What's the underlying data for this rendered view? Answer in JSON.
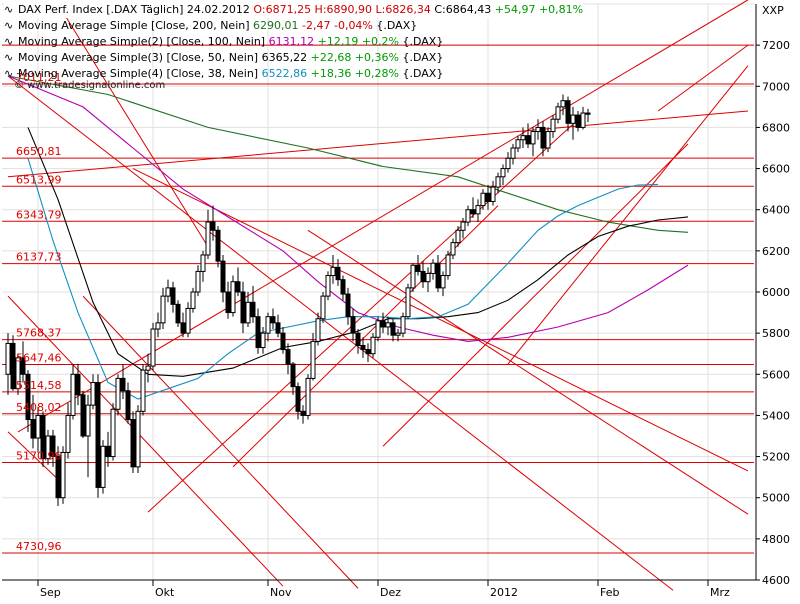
{
  "legend": {
    "main": {
      "label": "DAX Perf. Index [.DAX Täglich] 24.02.2012",
      "ohlc": "O:6871,25 H:6890,90 L:6826,34",
      "close": "C:6864,43",
      "change": "+54,97 +0,81%"
    },
    "ma": [
      {
        "label": "Moving Average Simple [Close, 200, Nein]",
        "value": "6290,01",
        "change": "-2,47 -0,04%",
        "tag": "{.DAX}",
        "color": "#207020"
      },
      {
        "label": "Moving Average Simple(2) [Close, 100, Nein]",
        "value": "6131,12",
        "change": "+12,19 +0,2%",
        "tag": "{.DAX}",
        "color": "#b000b0"
      },
      {
        "label": "Moving Average Simple(3) [Close, 50, Nein]",
        "value": "6365,22",
        "change": "+22,68 +0,36%",
        "tag": "{.DAX}",
        "color": "#000000"
      },
      {
        "label": "Moving Average Simple(4) [Close, 38, Nein]",
        "value": "6522,86",
        "change": "+18,36 +0,28%",
        "tag": "{.DAX}",
        "color": "#1090c0"
      }
    ]
  },
  "watermark": "© www.tradesignalonline.com",
  "symbol_label": "XXP",
  "colors": {
    "candle": "#000000",
    "level": "#dd0000",
    "trendline": "#dd0000",
    "grid": "#e0e0e0"
  },
  "chart_data": {
    "type": "candlestick",
    "x_axis": {
      "labels": [
        "Sep",
        "Okt",
        "Nov",
        "Dez",
        "2012",
        "Feb",
        "Mrz"
      ],
      "range": [
        "2011-08-29",
        "2012-03-12"
      ]
    },
    "y_axis": {
      "range": [
        4600,
        7400
      ],
      "ticks": [
        4600,
        4800,
        5000,
        5200,
        5400,
        5600,
        5800,
        6000,
        6200,
        6400,
        6600,
        6800,
        7000,
        7200,
        7400
      ]
    },
    "levels": [
      {
        "value": 7011.21,
        "label": "7011,21"
      },
      {
        "value": 6650.81,
        "label": "6650,81"
      },
      {
        "value": 6513.99,
        "label": "6513,99"
      },
      {
        "value": 6343.79,
        "label": "6343,79"
      },
      {
        "value": 6137.73,
        "label": "6137,73"
      },
      {
        "value": 5768.37,
        "label": "5768,37"
      },
      {
        "value": 5647.46,
        "label": "5647,46"
      },
      {
        "value": 5514.58,
        "label": "5514,58"
      },
      {
        "value": 5408.02,
        "label": "5408,02"
      },
      {
        "value": 5170.96,
        "label": "5170,96"
      },
      {
        "value": 4730.96,
        "label": "4730,96"
      },
      {
        "value": 7200
      }
    ],
    "trendlines": [
      {
        "from": [
          0,
          7050
        ],
        "to": [
          133,
          4550
        ]
      },
      {
        "from": [
          28,
          4930
        ],
        "to": [
          115,
          6860
        ]
      },
      {
        "from": [
          45,
          5150
        ],
        "to": [
          98,
          6420
        ]
      },
      {
        "from": [
          75,
          5250
        ],
        "to": [
          136,
          6720
        ]
      },
      {
        "from": [
          2,
          5320
        ],
        "to": [
          148,
          7420
        ]
      },
      {
        "from": [
          0,
          6560
        ],
        "to": [
          148,
          6880
        ]
      },
      {
        "from": [
          15,
          5980
        ],
        "to": [
          70,
          4560
        ]
      },
      {
        "from": [
          0,
          5980
        ],
        "to": [
          55,
          4570
        ]
      },
      {
        "from": [
          0,
          5320
        ],
        "to": [
          10,
          5090
        ]
      },
      {
        "from": [
          10,
          7400
        ],
        "to": [
          40,
          6220
        ]
      },
      {
        "from": [
          100,
          5650
        ],
        "to": [
          148,
          7100
        ]
      },
      {
        "from": [
          130,
          6880
        ],
        "to": [
          148,
          7200
        ]
      },
      {
        "from": [
          60,
          6300
        ],
        "to": [
          148,
          4920
        ]
      },
      {
        "from": [
          25,
          6600
        ],
        "to": [
          148,
          5130
        ]
      }
    ],
    "ma_series": [
      {
        "name": "MA200",
        "points": [
          [
            0,
            7050
          ],
          [
            20,
            6960
          ],
          [
            40,
            6800
          ],
          [
            60,
            6700
          ],
          [
            75,
            6610
          ],
          [
            90,
            6560
          ],
          [
            100,
            6480
          ],
          [
            110,
            6400
          ],
          [
            120,
            6340
          ],
          [
            130,
            6300
          ],
          [
            136,
            6290
          ]
        ]
      },
      {
        "name": "MA100",
        "points": [
          [
            0,
            7050
          ],
          [
            15,
            6900
          ],
          [
            25,
            6700
          ],
          [
            35,
            6500
          ],
          [
            45,
            6350
          ],
          [
            55,
            6200
          ],
          [
            62,
            6050
          ],
          [
            70,
            5900
          ],
          [
            78,
            5830
          ],
          [
            85,
            5790
          ],
          [
            92,
            5760
          ],
          [
            100,
            5780
          ],
          [
            110,
            5830
          ],
          [
            120,
            5900
          ],
          [
            128,
            6010
          ],
          [
            136,
            6131
          ]
        ]
      },
      {
        "name": "MA50",
        "points": [
          [
            4,
            6800
          ],
          [
            10,
            6450
          ],
          [
            17,
            5950
          ],
          [
            22,
            5700
          ],
          [
            28,
            5600
          ],
          [
            35,
            5590
          ],
          [
            45,
            5630
          ],
          [
            55,
            5730
          ],
          [
            62,
            5760
          ],
          [
            70,
            5810
          ],
          [
            76,
            5870
          ],
          [
            82,
            5870
          ],
          [
            88,
            5880
          ],
          [
            94,
            5900
          ],
          [
            100,
            5960
          ],
          [
            106,
            6060
          ],
          [
            112,
            6180
          ],
          [
            118,
            6270
          ],
          [
            124,
            6320
          ],
          [
            130,
            6350
          ],
          [
            136,
            6365
          ]
        ]
      },
      {
        "name": "MA38",
        "points": [
          [
            4,
            6650
          ],
          [
            9,
            6250
          ],
          [
            14,
            5900
          ],
          [
            20,
            5560
          ],
          [
            26,
            5480
          ],
          [
            32,
            5530
          ],
          [
            38,
            5580
          ],
          [
            44,
            5700
          ],
          [
            50,
            5800
          ],
          [
            56,
            5830
          ],
          [
            62,
            5860
          ],
          [
            68,
            5880
          ],
          [
            74,
            5880
          ],
          [
            80,
            5870
          ],
          [
            86,
            5880
          ],
          [
            92,
            5940
          ],
          [
            96,
            6040
          ],
          [
            100,
            6140
          ],
          [
            106,
            6300
          ],
          [
            110,
            6370
          ],
          [
            114,
            6420
          ],
          [
            118,
            6460
          ],
          [
            122,
            6500
          ],
          [
            126,
            6520
          ],
          [
            130,
            6523
          ]
        ]
      }
    ],
    "candles": [
      [
        5600,
        5800,
        5500,
        5750
      ],
      [
        5750,
        5790,
        5520,
        5530
      ],
      [
        5530,
        5700,
        5500,
        5680
      ],
      [
        5680,
        5760,
        5560,
        5600
      ],
      [
        5600,
        5620,
        5320,
        5380
      ],
      [
        5380,
        5500,
        5240,
        5290
      ],
      [
        5290,
        5440,
        5220,
        5400
      ],
      [
        5400,
        5420,
        5150,
        5190
      ],
      [
        5190,
        5330,
        5160,
        5300
      ],
      [
        5300,
        5330,
        5150,
        5200
      ],
      [
        5200,
        5250,
        4960,
        5000
      ],
      [
        5000,
        5250,
        4970,
        5220
      ],
      [
        5220,
        5460,
        5190,
        5400
      ],
      [
        5400,
        5650,
        5380,
        5600
      ],
      [
        5600,
        5650,
        5450,
        5500
      ],
      [
        5500,
        5520,
        5290,
        5300
      ],
      [
        5300,
        5500,
        5100,
        5450
      ],
      [
        5450,
        5600,
        5430,
        5560
      ],
      [
        5560,
        5600,
        5000,
        5050
      ],
      [
        5050,
        5280,
        5020,
        5250
      ],
      [
        5250,
        5320,
        5150,
        5200
      ],
      [
        5200,
        5460,
        5180,
        5430
      ],
      [
        5430,
        5600,
        5400,
        5580
      ],
      [
        5580,
        5650,
        5480,
        5520
      ],
      [
        5520,
        5560,
        5360,
        5380
      ],
      [
        5380,
        5420,
        5120,
        5150
      ],
      [
        5150,
        5450,
        5120,
        5420
      ],
      [
        5420,
        5650,
        5400,
        5620
      ],
      [
        5620,
        5700,
        5560,
        5640
      ],
      [
        5640,
        5850,
        5620,
        5820
      ],
      [
        5820,
        5900,
        5780,
        5850
      ],
      [
        5850,
        6020,
        5820,
        5980
      ],
      [
        5980,
        6060,
        5950,
        6020
      ],
      [
        6020,
        6050,
        5900,
        5940
      ],
      [
        5940,
        5960,
        5830,
        5850
      ],
      [
        5850,
        5900,
        5780,
        5800
      ],
      [
        5800,
        5950,
        5780,
        5920
      ],
      [
        5920,
        6020,
        5900,
        6000
      ],
      [
        6000,
        6130,
        5980,
        6100
      ],
      [
        6100,
        6200,
        6050,
        6180
      ],
      [
        6180,
        6400,
        6160,
        6340
      ],
      [
        6340,
        6420,
        6250,
        6300
      ],
      [
        6300,
        6320,
        6120,
        6150
      ],
      [
        6150,
        6180,
        5950,
        6000
      ],
      [
        6000,
        6050,
        5870,
        5900
      ],
      [
        5900,
        6080,
        5880,
        6050
      ],
      [
        6050,
        6120,
        5980,
        6000
      ],
      [
        6000,
        6050,
        5800,
        5850
      ],
      [
        5850,
        6000,
        5830,
        5950
      ],
      [
        5950,
        6030,
        5850,
        5880
      ],
      [
        5880,
        5920,
        5700,
        5730
      ],
      [
        5730,
        5830,
        5700,
        5800
      ],
      [
        5800,
        5900,
        5760,
        5880
      ],
      [
        5880,
        5920,
        5820,
        5850
      ],
      [
        5850,
        5890,
        5780,
        5800
      ],
      [
        5800,
        5830,
        5700,
        5720
      ],
      [
        5720,
        5750,
        5600,
        5650
      ],
      [
        5650,
        5660,
        5500,
        5540
      ],
      [
        5540,
        5560,
        5380,
        5420
      ],
      [
        5420,
        5450,
        5360,
        5400
      ],
      [
        5400,
        5600,
        5380,
        5580
      ],
      [
        5580,
        5800,
        5570,
        5760
      ],
      [
        5760,
        5900,
        5740,
        5870
      ],
      [
        5870,
        6000,
        5850,
        5980
      ],
      [
        5980,
        6100,
        5960,
        6080
      ],
      [
        6080,
        6180,
        6040,
        6120
      ],
      [
        6120,
        6160,
        6030,
        6060
      ],
      [
        6060,
        6080,
        5960,
        5990
      ],
      [
        5990,
        6020,
        5840,
        5880
      ],
      [
        5880,
        5920,
        5760,
        5800
      ],
      [
        5800,
        5820,
        5700,
        5740
      ],
      [
        5740,
        5780,
        5680,
        5720
      ],
      [
        5720,
        5750,
        5660,
        5700
      ],
      [
        5700,
        5800,
        5680,
        5780
      ],
      [
        5780,
        5880,
        5760,
        5860
      ],
      [
        5860,
        5900,
        5800,
        5830
      ],
      [
        5830,
        5880,
        5790,
        5850
      ],
      [
        5850,
        5870,
        5760,
        5790
      ],
      [
        5790,
        5820,
        5760,
        5800
      ],
      [
        5800,
        5900,
        5780,
        5880
      ],
      [
        5880,
        6040,
        5870,
        6020
      ],
      [
        6020,
        6140,
        6000,
        6130
      ],
      [
        6130,
        6180,
        6080,
        6100
      ],
      [
        6100,
        6150,
        6020,
        6050
      ],
      [
        6050,
        6120,
        6000,
        6090
      ],
      [
        6090,
        6160,
        6060,
        6140
      ],
      [
        6140,
        6180,
        6000,
        6020
      ],
      [
        6020,
        6100,
        5980,
        6080
      ],
      [
        6080,
        6200,
        6060,
        6180
      ],
      [
        6180,
        6260,
        6160,
        6240
      ],
      [
        6240,
        6320,
        6220,
        6300
      ],
      [
        6300,
        6360,
        6260,
        6340
      ],
      [
        6340,
        6420,
        6320,
        6400
      ],
      [
        6400,
        6460,
        6360,
        6380
      ],
      [
        6380,
        6450,
        6340,
        6420
      ],
      [
        6420,
        6500,
        6400,
        6480
      ],
      [
        6480,
        6520,
        6400,
        6440
      ],
      [
        6440,
        6540,
        6420,
        6510
      ],
      [
        6510,
        6580,
        6480,
        6560
      ],
      [
        6560,
        6620,
        6520,
        6600
      ],
      [
        6600,
        6680,
        6580,
        6650
      ],
      [
        6650,
        6720,
        6620,
        6700
      ],
      [
        6700,
        6760,
        6680,
        6740
      ],
      [
        6740,
        6800,
        6700,
        6760
      ],
      [
        6760,
        6820,
        6700,
        6720
      ],
      [
        6720,
        6800,
        6660,
        6780
      ],
      [
        6780,
        6840,
        6740,
        6800
      ],
      [
        6800,
        6830,
        6660,
        6700
      ],
      [
        6700,
        6800,
        6680,
        6780
      ],
      [
        6780,
        6860,
        6750,
        6840
      ],
      [
        6840,
        6920,
        6820,
        6900
      ],
      [
        6900,
        6960,
        6860,
        6930
      ],
      [
        6930,
        6950,
        6780,
        6820
      ],
      [
        6820,
        6900,
        6740,
        6860
      ],
      [
        6860,
        6880,
        6780,
        6800
      ],
      [
        6800,
        6900,
        6790,
        6870
      ],
      [
        6870,
        6890,
        6826,
        6864
      ]
    ]
  }
}
